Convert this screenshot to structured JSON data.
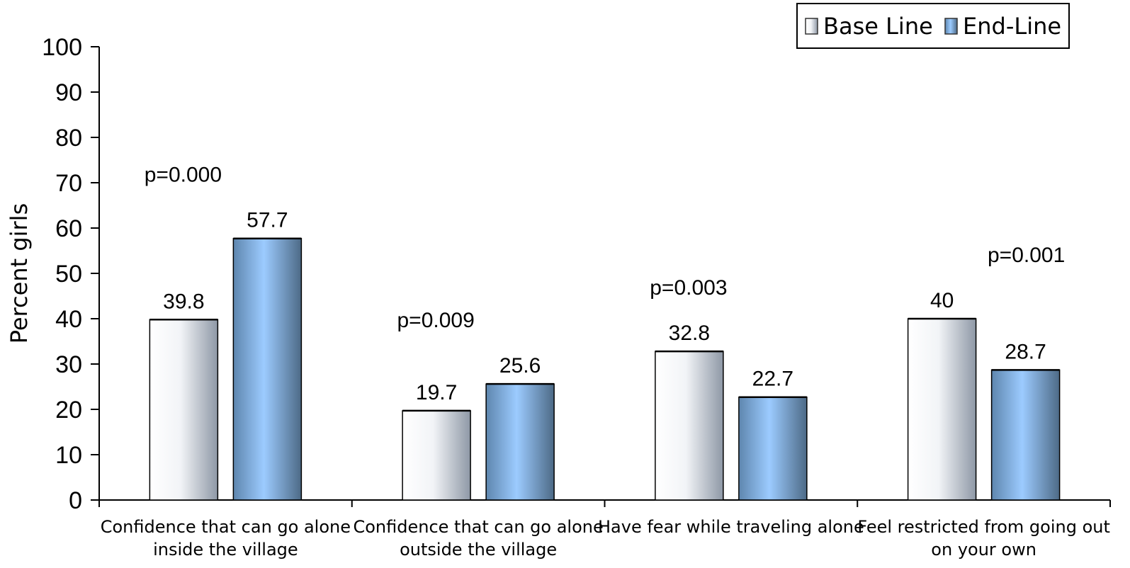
{
  "chart_data": {
    "type": "bar",
    "title": "",
    "xlabel": "",
    "ylabel": "Percent girls",
    "ylim": [
      0,
      100
    ],
    "yticks": [
      0,
      10,
      20,
      30,
      40,
      50,
      60,
      70,
      80,
      90,
      100
    ],
    "grid": false,
    "legend_position": "top-right",
    "categories": [
      [
        "Confidence that can go alone",
        "inside the village"
      ],
      [
        "Confidence that can go alone",
        "outside the village"
      ],
      [
        "Have fear while traveling alone"
      ],
      [
        "Feel restricted from going out",
        "on your own"
      ]
    ],
    "series": [
      {
        "name": "Base Line",
        "values": [
          39.8,
          19.7,
          32.8,
          40
        ],
        "labels": [
          "39.8",
          "19.7",
          "32.8",
          "40"
        ],
        "color": "#e8ecf2",
        "edge_color": "#9aa3ae"
      },
      {
        "name": "End-Line",
        "values": [
          57.7,
          25.6,
          22.7,
          28.7
        ],
        "labels": [
          "57.7",
          "25.6",
          "22.7",
          "28.7"
        ],
        "color": "#9ccbff",
        "edge_color": "#5a7890"
      }
    ],
    "annotations": [
      "p=0.000",
      "p=0.009",
      "p=0.003",
      "p=0.001"
    ]
  }
}
